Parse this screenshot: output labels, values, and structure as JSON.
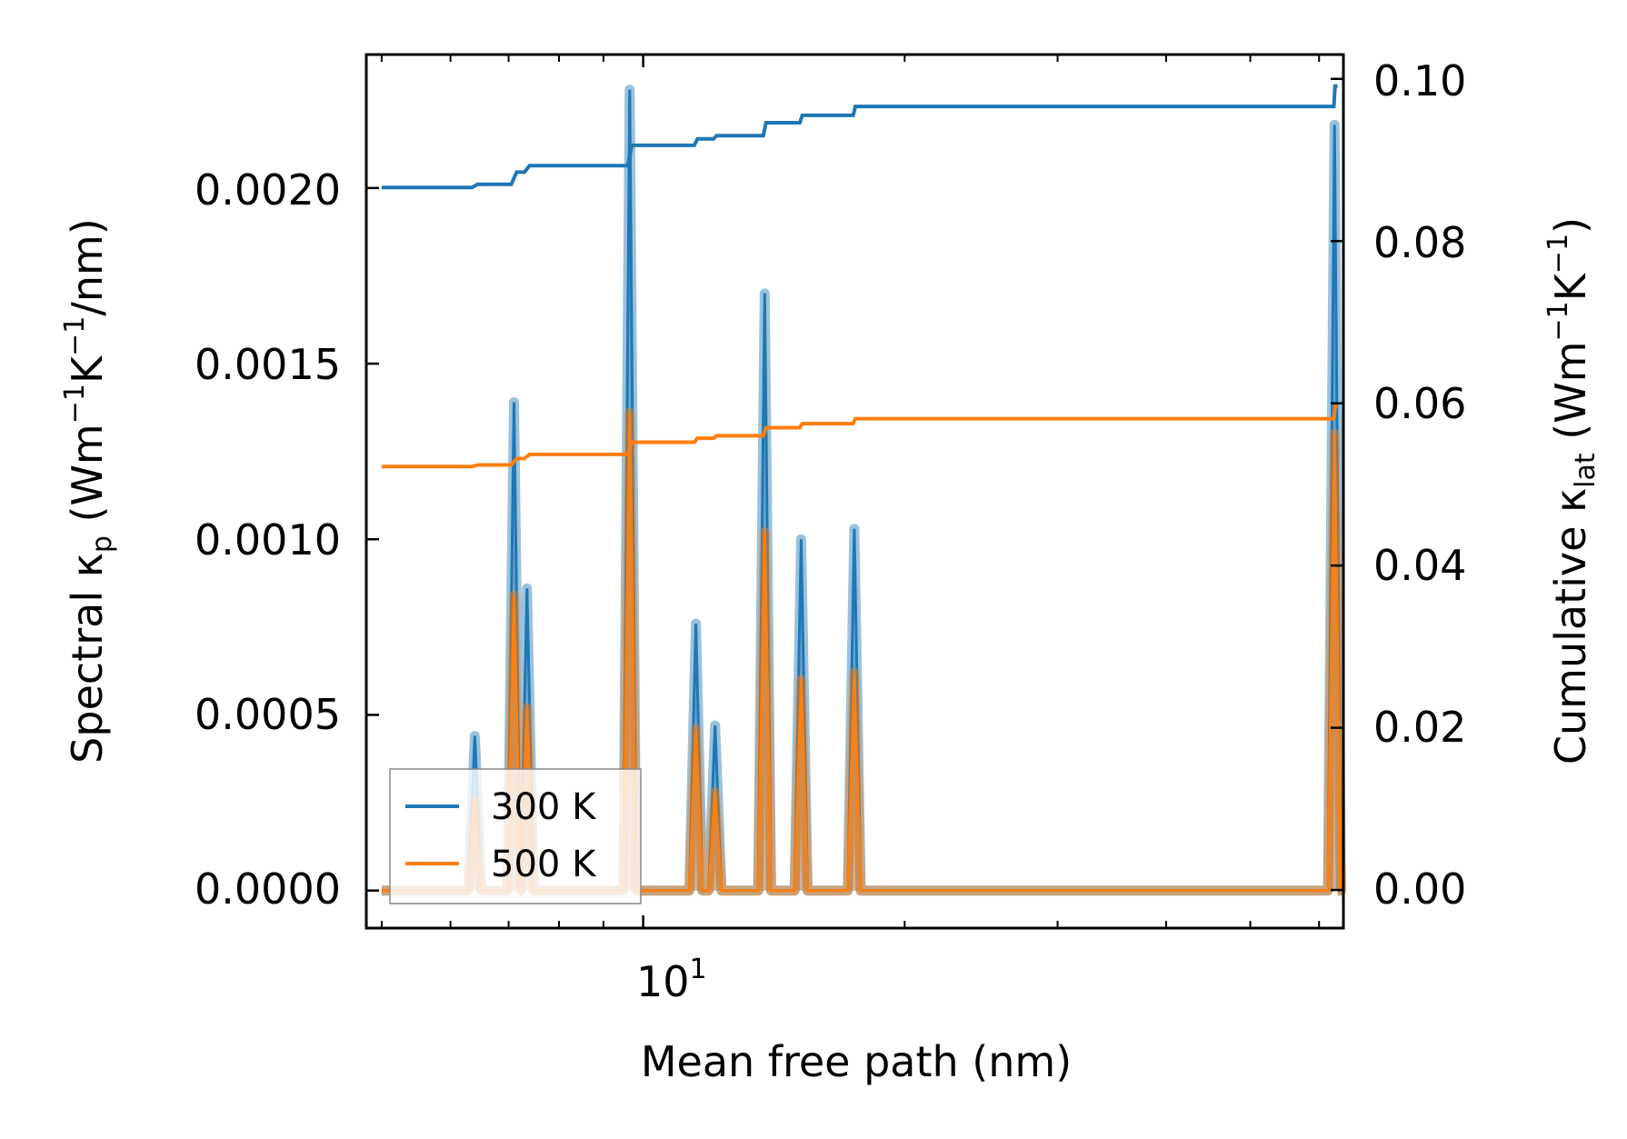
{
  "chart_data": {
    "type": "line",
    "xlabel": "Mean free path (nm)",
    "xscale": "log",
    "xlim": [
      4.8,
      64
    ],
    "x_tick_labels": [
      {
        "value": 10,
        "label": "10",
        "exponent": "1"
      }
    ],
    "x_minor_ticks": [
      5,
      6,
      7,
      8,
      9,
      20,
      30,
      40,
      50,
      60
    ],
    "left_axis": {
      "label_prefix": "Spectral κ",
      "label_sub": "p",
      "label_units_a": " (Wm",
      "label_sup_a": "−1",
      "label_units_b": "K",
      "label_sup_b": "−1",
      "label_units_c": "/nm)",
      "ylim": [
        -0.000107,
        0.00238
      ],
      "ticks": [
        0.0,
        0.0005,
        0.001,
        0.0015,
        0.002
      ],
      "tick_labels": [
        "0.0000",
        "0.0005",
        "0.0010",
        "0.0015",
        "0.0020"
      ]
    },
    "right_axis": {
      "label_prefix": "Cumulative κ",
      "label_sub": "lat",
      "label_units_a": " (Wm",
      "label_sup_a": "−1",
      "label_units_b": "K",
      "label_sup_b": "−1",
      "label_units_c": ")",
      "ylim": [
        -0.0047,
        0.103
      ],
      "ticks": [
        0.0,
        0.02,
        0.04,
        0.06,
        0.08,
        0.1
      ],
      "tick_labels": [
        "0.00",
        "0.02",
        "0.04",
        "0.06",
        "0.08",
        "0.10"
      ]
    },
    "legend": {
      "position": "lower-left",
      "entries": [
        "300 K",
        "500 K"
      ]
    },
    "colors": {
      "300 K": "#1f77b4",
      "500 K": "#ff7f0e"
    },
    "spectral_peaks": [
      {
        "x": 6.4,
        "k300": 0.00044,
        "k500": 0.00026
      },
      {
        "x": 7.1,
        "k300": 0.00139,
        "k500": 0.00084
      },
      {
        "x": 7.35,
        "k300": 0.00086,
        "k500": 0.00052
      },
      {
        "x": 9.65,
        "k300": 0.00228,
        "k500": 0.00136
      },
      {
        "x": 11.5,
        "k300": 0.00076,
        "k500": 0.00046
      },
      {
        "x": 12.1,
        "k300": 0.00047,
        "k500": 0.00028
      },
      {
        "x": 13.8,
        "k300": 0.0017,
        "k500": 0.00102
      },
      {
        "x": 15.2,
        "k300": 0.001,
        "k500": 0.0006
      },
      {
        "x": 17.5,
        "k300": 0.00103,
        "k500": 0.00062
      },
      {
        "x": 62.5,
        "k300": 0.00218,
        "k500": 0.0013
      }
    ],
    "spectral_x_range": [
      5.0,
      63.0
    ],
    "cumulative": [
      {
        "name": "300 K",
        "x": [
          5.0,
          6.35,
          6.45,
          7.05,
          7.15,
          7.3,
          7.4,
          9.6,
          9.7,
          11.45,
          11.55,
          12.05,
          12.15,
          13.75,
          13.85,
          15.15,
          15.25,
          17.45,
          17.55,
          62.4,
          62.6,
          63.0
        ],
        "values": [
          0.0866,
          0.0866,
          0.087,
          0.087,
          0.0885,
          0.0885,
          0.0893,
          0.0893,
          0.0918,
          0.0918,
          0.0926,
          0.0926,
          0.093,
          0.093,
          0.0946,
          0.0946,
          0.0955,
          0.0955,
          0.0966,
          0.0966,
          0.0991,
          0.0991
        ]
      },
      {
        "name": "500 K",
        "x": [
          5.0,
          6.35,
          6.45,
          7.05,
          7.15,
          7.3,
          7.4,
          9.6,
          9.7,
          11.45,
          11.55,
          12.05,
          12.15,
          13.75,
          13.85,
          15.15,
          15.25,
          17.45,
          17.55,
          62.4,
          62.6,
          63.0
        ],
        "values": [
          0.0522,
          0.0522,
          0.0524,
          0.0524,
          0.0532,
          0.0532,
          0.0537,
          0.0537,
          0.0552,
          0.0552,
          0.0557,
          0.0557,
          0.056,
          0.056,
          0.057,
          0.057,
          0.0575,
          0.0575,
          0.0581,
          0.0581,
          0.0596,
          0.0596
        ]
      }
    ]
  }
}
